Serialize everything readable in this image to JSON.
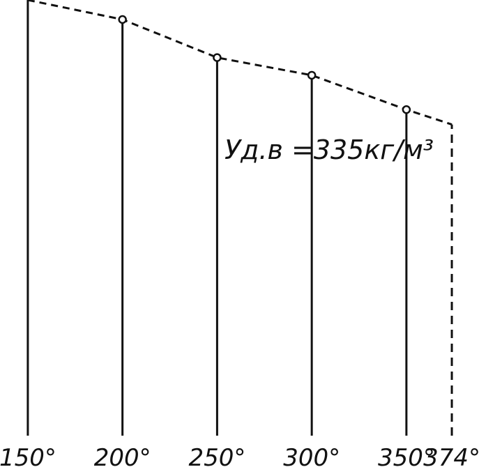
{
  "chart_data": {
    "type": "stem",
    "x": [
      150,
      200,
      250,
      300,
      350,
      374
    ],
    "values": [
      469,
      448,
      407,
      388,
      351,
      335
    ],
    "xlim": [
      135.3,
      400.5
    ],
    "ylim": [
      0,
      469
    ],
    "xticks": [
      {
        "value": 150,
        "label": "150°"
      },
      {
        "value": 200,
        "label": "200°"
      },
      {
        "value": 250,
        "label": "250°"
      },
      {
        "value": 300,
        "label": "300°"
      },
      {
        "value": 350,
        "label": "350°"
      },
      {
        "value": 374,
        "label": "374°"
      }
    ],
    "annotation": "Уд.в =335кг/м³",
    "color": "#111111"
  }
}
